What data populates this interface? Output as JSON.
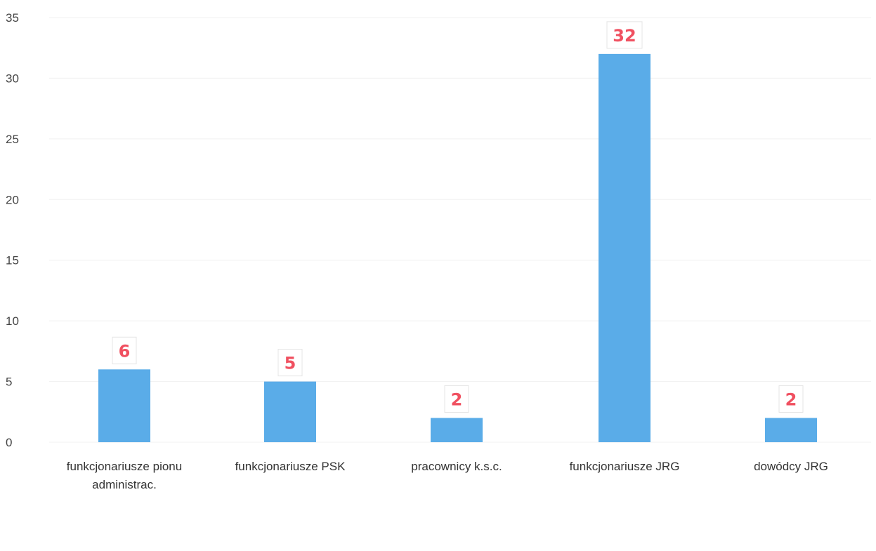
{
  "chart_data": {
    "type": "bar",
    "categories": [
      [
        "funkcjonariusze pionu",
        "administrac."
      ],
      [
        "funkcjonariusze PSK"
      ],
      [
        "pracownicy k.s.c."
      ],
      [
        "funkcjonariusze JRG"
      ],
      [
        "dowódcy JRG"
      ]
    ],
    "values": [
      6,
      5,
      2,
      32,
      2
    ],
    "data_labels": [
      "6",
      "5",
      "2",
      "32",
      "2"
    ],
    "title": "",
    "xlabel": "",
    "ylabel": "",
    "ylim": [
      0,
      35
    ],
    "yticks": [
      0,
      5,
      10,
      15,
      20,
      25,
      30,
      35
    ],
    "ytick_labels": [
      "0",
      "5",
      "10",
      "15",
      "20",
      "25",
      "30",
      "35"
    ],
    "grid": true,
    "legend": "none",
    "colors": {
      "bar": "#5aace8",
      "data_label": "#f05060"
    }
  }
}
